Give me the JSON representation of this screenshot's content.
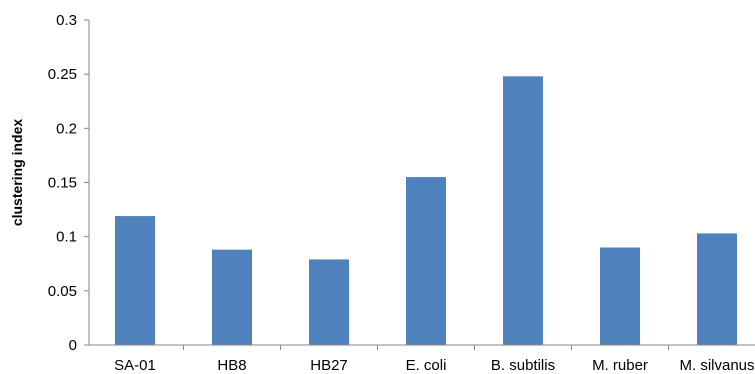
{
  "chart_data": {
    "type": "bar",
    "title": "",
    "xlabel": "",
    "ylabel": "clustering index",
    "categories": [
      "SA-01",
      "HB8",
      "HB27",
      "E. coli",
      "B. subtilis",
      "M. ruber",
      "M. silvanus"
    ],
    "values": [
      0.119,
      0.088,
      0.079,
      0.155,
      0.248,
      0.09,
      0.103
    ],
    "ylim": [
      0,
      0.3
    ],
    "yticks": [
      0,
      0.05,
      0.1,
      0.15,
      0.2,
      0.25,
      0.3
    ],
    "ytick_labels": [
      "0",
      "0.05",
      "0.1",
      "0.15",
      "0.2",
      "0.25",
      "0.3"
    ],
    "grid": false,
    "legend": "none",
    "bar_color": "#4f81bd",
    "axis_color": "#868686"
  }
}
